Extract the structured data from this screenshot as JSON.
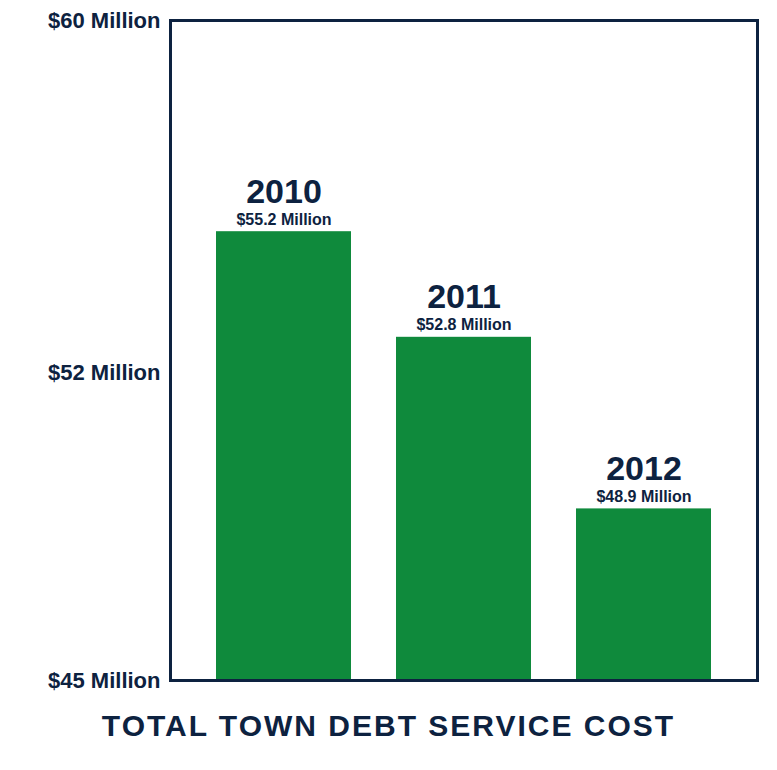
{
  "chart_data": {
    "type": "bar",
    "title": "TOTAL TOWN DEBT SERVICE COST",
    "categories": [
      "2010",
      "2011",
      "2012"
    ],
    "values": [
      55.2,
      52.8,
      48.9
    ],
    "value_labels": [
      "$55.2 Million",
      "$52.8 Million",
      "$48.9 Million"
    ],
    "data_labels": true,
    "color": "#0f8a3c",
    "ylim": [
      45,
      60
    ],
    "yticks": [
      {
        "value": 45,
        "label": "$45 Million"
      },
      {
        "value": 52,
        "label": "$52 Million"
      },
      {
        "value": 60,
        "label": "$60 Million"
      }
    ],
    "tick_labels": "y",
    "grid": false
  }
}
